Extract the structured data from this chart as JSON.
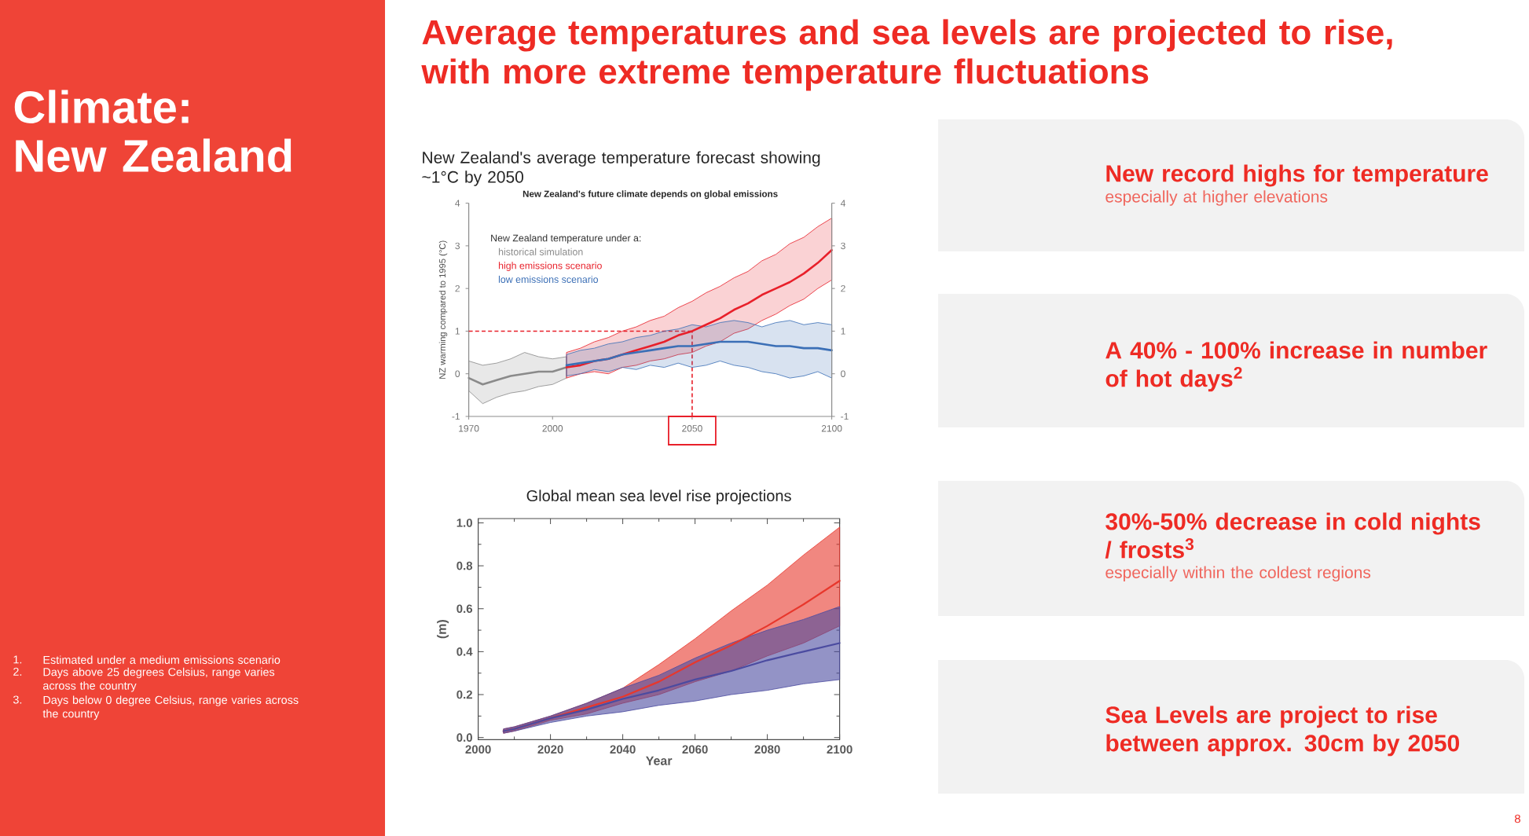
{
  "chart_data": [
    {
      "type": "other",
      "title": "Average temperatures and sea levels are projected to rise, with more extreme temperature fluctuations",
      "subtitle": "Climate: New Zealand",
      "annotations": [
        "1.",
        "Estimated under a medium emissions scenario",
        "2.",
        "Days above 25 degrees Celsius, range varies across the country",
        "3.",
        "Days below 0 degree Celsius, range varies across the country",
        "8"
      ]
    },
    {
      "type": "line",
      "title": "New Zealand's average temperature forecast showing ~1°C by 2050",
      "subtitle": "New Zealand's future climate depends on global emissions",
      "ylabel": "NZ warming compared to 1995 (°C)",
      "legend_title": "New Zealand temperature under a:",
      "legend": "top left",
      "xlim": [
        1970,
        2100
      ],
      "xticks": [
        1970,
        2000,
        2050,
        2100
      ],
      "ylim": [
        -1,
        4
      ],
      "yticks": [
        -1,
        0,
        1,
        2,
        3,
        4
      ],
      "y2lim": [
        -1,
        4
      ],
      "y2ticks": [
        -1,
        0,
        1,
        2,
        3,
        4
      ],
      "series": [
        {
          "name": "historical simulation",
          "color": "#8a8a8a",
          "x": [
            1970,
            1975,
            1980,
            1985,
            1990,
            1995,
            2000,
            2005
          ],
          "values": [
            -0.1,
            -0.25,
            -0.15,
            -0.05,
            0.0,
            0.05,
            0.05,
            0.15
          ],
          "lower": [
            -0.4,
            -0.7,
            -0.55,
            -0.45,
            -0.4,
            -0.3,
            -0.25,
            -0.1
          ],
          "upper": [
            0.3,
            0.2,
            0.25,
            0.35,
            0.5,
            0.4,
            0.35,
            0.4
          ]
        },
        {
          "name": "high emissions scenario",
          "color": "#e8202a",
          "x": [
            2005,
            2010,
            2015,
            2020,
            2025,
            2030,
            2035,
            2040,
            2045,
            2050,
            2055,
            2060,
            2065,
            2070,
            2075,
            2080,
            2085,
            2090,
            2095,
            2100
          ],
          "values": [
            0.15,
            0.2,
            0.3,
            0.35,
            0.45,
            0.55,
            0.65,
            0.75,
            0.9,
            1.0,
            1.15,
            1.3,
            1.5,
            1.65,
            1.85,
            2.0,
            2.15,
            2.35,
            2.6,
            2.9
          ],
          "lower": [
            -0.1,
            0.0,
            0.05,
            0.0,
            0.15,
            0.2,
            0.3,
            0.35,
            0.45,
            0.5,
            0.65,
            0.75,
            0.95,
            1.05,
            1.25,
            1.4,
            1.6,
            1.75,
            2.0,
            2.2
          ],
          "upper": [
            0.5,
            0.6,
            0.75,
            0.85,
            1.0,
            1.1,
            1.25,
            1.35,
            1.55,
            1.7,
            1.9,
            2.05,
            2.25,
            2.4,
            2.65,
            2.8,
            3.05,
            3.2,
            3.45,
            3.65
          ]
        },
        {
          "name": "low emissions scenario",
          "color": "#3b6fb6",
          "x": [
            2005,
            2010,
            2015,
            2020,
            2025,
            2030,
            2035,
            2040,
            2045,
            2050,
            2055,
            2060,
            2065,
            2070,
            2075,
            2080,
            2085,
            2090,
            2095,
            2100
          ],
          "values": [
            0.2,
            0.25,
            0.3,
            0.35,
            0.45,
            0.5,
            0.55,
            0.6,
            0.65,
            0.65,
            0.7,
            0.75,
            0.75,
            0.75,
            0.7,
            0.65,
            0.65,
            0.6,
            0.6,
            0.55
          ],
          "lower": [
            -0.05,
            0.0,
            0.1,
            0.05,
            0.15,
            0.1,
            0.2,
            0.15,
            0.25,
            0.15,
            0.2,
            0.3,
            0.2,
            0.15,
            0.05,
            0.0,
            -0.1,
            -0.05,
            0.05,
            -0.1
          ],
          "upper": [
            0.45,
            0.55,
            0.6,
            0.7,
            0.75,
            0.85,
            0.9,
            1.0,
            1.05,
            1.15,
            1.1,
            1.2,
            1.25,
            1.2,
            1.1,
            1.2,
            1.25,
            1.15,
            1.2,
            1.15
          ]
        }
      ],
      "ref_lines": [
        {
          "axis": "y",
          "value": 1,
          "color": "#e8202a",
          "line_style": "dashed"
        },
        {
          "axis": "x",
          "value": 2050,
          "color": "#e8202a",
          "line_style": "dashed"
        }
      ]
    },
    {
      "type": "line",
      "title": "Global mean sea level rise projections",
      "xlabel": "Year",
      "ylabel": "(m)",
      "xlim": [
        2000,
        2100
      ],
      "xticks": [
        2000,
        2020,
        2040,
        2060,
        2080,
        2100
      ],
      "ylim": [
        -0.01,
        1.02
      ],
      "yticks": [
        {
          "value": 0,
          "label": "0.0"
        },
        0.2,
        0.4,
        0.6,
        0.8,
        {
          "value": 1,
          "label": "1.0"
        }
      ],
      "series": [
        {
          "color": "#e8372c",
          "x": [
            2007,
            2010,
            2020,
            2030,
            2040,
            2050,
            2060,
            2070,
            2080,
            2090,
            2100
          ],
          "values": [
            0.03,
            0.04,
            0.09,
            0.14,
            0.19,
            0.26,
            0.35,
            0.43,
            0.52,
            0.62,
            0.73
          ],
          "lower": [
            0.02,
            0.03,
            0.08,
            0.11,
            0.16,
            0.2,
            0.26,
            0.31,
            0.38,
            0.44,
            0.52
          ],
          "upper": [
            0.04,
            0.05,
            0.1,
            0.16,
            0.23,
            0.34,
            0.46,
            0.59,
            0.71,
            0.85,
            0.98
          ]
        },
        {
          "color": "#4b4ba0",
          "x": [
            2007,
            2010,
            2020,
            2030,
            2040,
            2050,
            2060,
            2070,
            2080,
            2090,
            2100
          ],
          "values": [
            0.03,
            0.04,
            0.09,
            0.13,
            0.18,
            0.22,
            0.27,
            0.31,
            0.36,
            0.4,
            0.44
          ],
          "lower": [
            0.02,
            0.03,
            0.07,
            0.1,
            0.12,
            0.15,
            0.17,
            0.2,
            0.22,
            0.25,
            0.27
          ],
          "upper": [
            0.04,
            0.05,
            0.1,
            0.16,
            0.23,
            0.29,
            0.37,
            0.44,
            0.5,
            0.55,
            0.61
          ]
        }
      ]
    },
    {
      "type": "other",
      "title": "New record highs for temperature",
      "subtitle": "especially at higher elevations"
    },
    {
      "type": "other",
      "title": "A 40% - 100% increase in number of hot days$^{2}$"
    },
    {
      "type": "other",
      "title": "30%-50% decrease in cold nights / frosts$^{3}$",
      "subtitle": "especially within the coldest regions"
    },
    {
      "type": "other",
      "title": "Sea Levels are project to rise between approx. 30cm by 2050"
    }
  ]
}
